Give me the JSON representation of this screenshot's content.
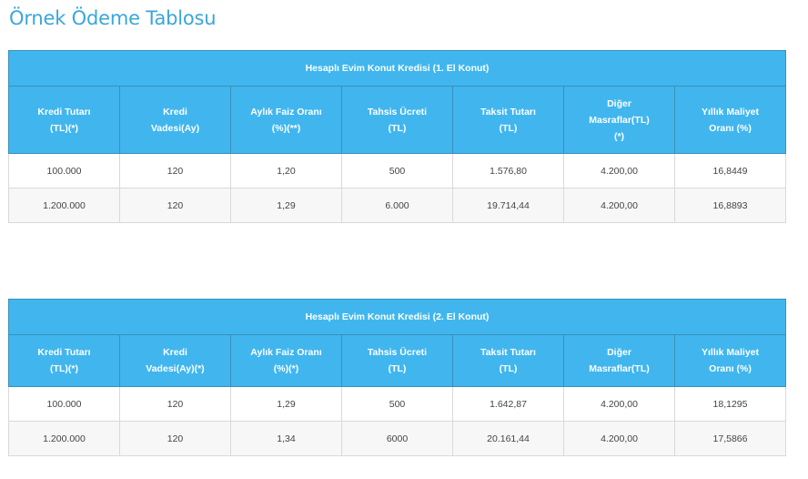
{
  "page": {
    "title": "Örnek Ödeme Tablosu"
  },
  "tables": [
    {
      "caption": "Hesaplı Evim Konut Kredisi (1. El Konut)",
      "headers": [
        [
          "Kredi Tutarı",
          "(TL)(*)"
        ],
        [
          "Kredi",
          "Vadesi(Ay)"
        ],
        [
          "Aylık Faiz Oranı",
          "(%)(**)"
        ],
        [
          "Tahsis Ücreti",
          "(TL)"
        ],
        [
          "Taksit Tutarı",
          "(TL)"
        ],
        [
          "Diğer",
          "Masraflar(TL)",
          "(*)"
        ],
        [
          "Yıllık Maliyet",
          "Oranı (%)"
        ]
      ],
      "rows": [
        [
          "100.000",
          "120",
          "1,20",
          "500",
          "1.576,80",
          "4.200,00",
          "16,8449"
        ],
        [
          "1.200.000",
          "120",
          "1,29",
          "6.000",
          "19.714,44",
          "4.200,00",
          "16,8893"
        ]
      ]
    },
    {
      "caption": "Hesaplı Evim Konut Kredisi (2. El Konut)",
      "headers": [
        [
          "Kredi Tutarı",
          "(TL)(*)"
        ],
        [
          "Kredi",
          "Vadesi(Ay)(*)"
        ],
        [
          "Aylık Faiz Oranı",
          "(%)(*)"
        ],
        [
          "Tahsis Ücreti",
          "(TL)"
        ],
        [
          "Taksit Tutarı",
          "(TL)"
        ],
        [
          "Diğer",
          "Masraflar(TL)"
        ],
        [
          "Yıllık Maliyet",
          "Oranı (%)"
        ]
      ],
      "rows": [
        [
          "100.000",
          "120",
          "1,29",
          "500",
          "1.642,87",
          "4.200,00",
          "18,1295"
        ],
        [
          "1.200.000",
          "120",
          "1,34",
          "6000",
          "20.161,44",
          "4.200,00",
          "17,5866"
        ]
      ]
    }
  ]
}
